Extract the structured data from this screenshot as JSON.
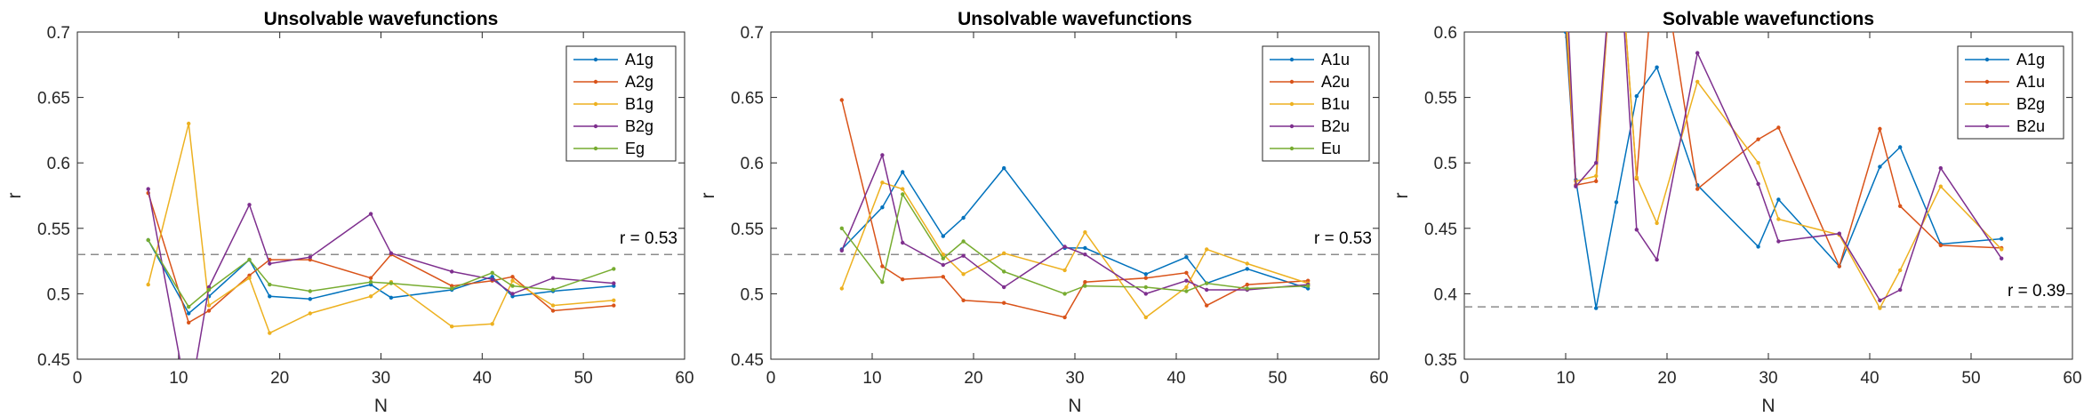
{
  "chart_data": [
    {
      "type": "line",
      "title": "Unsolvable wavefunctions",
      "xlabel": "N",
      "ylabel": "r",
      "xlim": [
        0,
        60
      ],
      "ylim": [
        0.45,
        0.7
      ],
      "xticks": [
        "0",
        "10",
        "20",
        "30",
        "40",
        "50",
        "60"
      ],
      "yticks": [
        "0.45",
        "0.5",
        "0.55",
        "0.6",
        "0.65",
        "0.7"
      ],
      "legend_position": "top-right",
      "reference_line": {
        "y": 0.53,
        "label": "r = 0.53"
      },
      "x": [
        7,
        11,
        13,
        17,
        19,
        23,
        29,
        31,
        37,
        41,
        43,
        47,
        53
      ],
      "series": [
        {
          "name": "A1g",
          "color": "#0072BD",
          "values": [
            0.541,
            0.485,
            0.498,
            0.526,
            0.498,
            0.496,
            0.507,
            0.497,
            0.503,
            0.513,
            0.498,
            0.502,
            0.506
          ]
        },
        {
          "name": "A2g",
          "color": "#D95319",
          "values": [
            0.577,
            0.478,
            0.487,
            0.514,
            0.526,
            0.526,
            0.512,
            0.53,
            0.506,
            0.51,
            0.513,
            0.487,
            0.491
          ]
        },
        {
          "name": "B1g",
          "color": "#EDB120",
          "values": [
            0.507,
            0.63,
            0.491,
            0.512,
            0.47,
            0.485,
            0.498,
            0.509,
            0.475,
            0.477,
            0.51,
            0.491,
            0.495
          ]
        },
        {
          "name": "B2g",
          "color": "#7E2F8E",
          "values": [
            0.58,
            0.414,
            0.505,
            0.568,
            0.523,
            0.528,
            0.561,
            0.531,
            0.517,
            0.511,
            0.5,
            0.512,
            0.508
          ]
        },
        {
          "name": "Eg",
          "color": "#77AC30",
          "values": [
            0.541,
            0.49,
            0.503,
            0.526,
            0.507,
            0.502,
            0.509,
            0.508,
            0.504,
            0.516,
            0.506,
            0.503,
            0.519
          ]
        }
      ]
    },
    {
      "type": "line",
      "title": "Unsolvable wavefunctions",
      "xlabel": "N",
      "ylabel": "r",
      "xlim": [
        0,
        60
      ],
      "ylim": [
        0.45,
        0.7
      ],
      "xticks": [
        "0",
        "10",
        "20",
        "30",
        "40",
        "50",
        "60"
      ],
      "yticks": [
        "0.45",
        "0.5",
        "0.55",
        "0.6",
        "0.65",
        "0.7"
      ],
      "legend_position": "top-right",
      "reference_line": {
        "y": 0.53,
        "label": "r = 0.53"
      },
      "x": [
        7,
        11,
        13,
        17,
        19,
        23,
        29,
        31,
        37,
        41,
        43,
        47,
        53
      ],
      "series": [
        {
          "name": "A1u",
          "color": "#0072BD",
          "values": [
            0.534,
            0.566,
            0.593,
            0.544,
            0.558,
            0.596,
            0.535,
            0.535,
            0.515,
            0.528,
            0.508,
            0.519,
            0.504
          ]
        },
        {
          "name": "A2u",
          "color": "#D95319",
          "values": [
            0.648,
            0.521,
            0.511,
            0.513,
            0.495,
            0.493,
            0.482,
            0.509,
            0.512,
            0.516,
            0.491,
            0.507,
            0.51
          ]
        },
        {
          "name": "B1u",
          "color": "#EDB120",
          "values": [
            0.504,
            0.585,
            0.58,
            0.53,
            0.515,
            0.531,
            0.518,
            0.547,
            0.482,
            0.505,
            0.534,
            0.523,
            0.508
          ]
        },
        {
          "name": "B2u",
          "color": "#7E2F8E",
          "values": [
            0.533,
            0.606,
            0.539,
            0.522,
            0.529,
            0.505,
            0.536,
            0.53,
            0.5,
            0.51,
            0.503,
            0.503,
            0.507
          ]
        },
        {
          "name": "Eu",
          "color": "#77AC30",
          "values": [
            0.55,
            0.509,
            0.576,
            0.527,
            0.54,
            0.517,
            0.5,
            0.506,
            0.505,
            0.502,
            0.508,
            0.504,
            0.506
          ]
        }
      ]
    },
    {
      "type": "line",
      "title": "Solvable wavefunctions",
      "xlabel": "N",
      "ylabel": "r",
      "xlim": [
        0,
        60
      ],
      "ylim": [
        0.35,
        0.6
      ],
      "xticks": [
        "0",
        "10",
        "20",
        "30",
        "40",
        "50",
        "60"
      ],
      "yticks": [
        "0.35",
        "0.4",
        "0.45",
        "0.5",
        "0.55",
        "0.6"
      ],
      "legend_position": "top-right",
      "reference_line": {
        "y": 0.39,
        "label": "r = 0.39"
      },
      "x": [
        10,
        11,
        13,
        15,
        17,
        19,
        23,
        29,
        31,
        37,
        41,
        43,
        47,
        53
      ],
      "series": [
        {
          "name": "A1g",
          "color": "#0072BD",
          "values": [
            0.6,
            0.487,
            0.389,
            0.47,
            0.551,
            0.573,
            0.483,
            0.436,
            0.472,
            0.421,
            0.497,
            0.512,
            0.438,
            0.442
          ]
        },
        {
          "name": "A1u",
          "color": "#D95319",
          "values": [
            0.61,
            0.483,
            0.486,
            0.7,
            0.488,
            0.68,
            0.48,
            0.518,
            0.527,
            0.421,
            0.526,
            0.467,
            0.437,
            0.435
          ]
        },
        {
          "name": "B2g",
          "color": "#EDB120",
          "values": [
            0.62,
            0.486,
            0.49,
            0.7,
            0.489,
            0.454,
            0.562,
            0.5,
            0.457,
            0.445,
            0.389,
            0.418,
            0.482,
            0.434
          ]
        },
        {
          "name": "B2u",
          "color": "#7E2F8E",
          "values": [
            0.65,
            0.482,
            0.5,
            0.7,
            0.449,
            0.426,
            0.584,
            0.484,
            0.44,
            0.446,
            0.395,
            0.403,
            0.496,
            0.427
          ]
        }
      ]
    }
  ]
}
